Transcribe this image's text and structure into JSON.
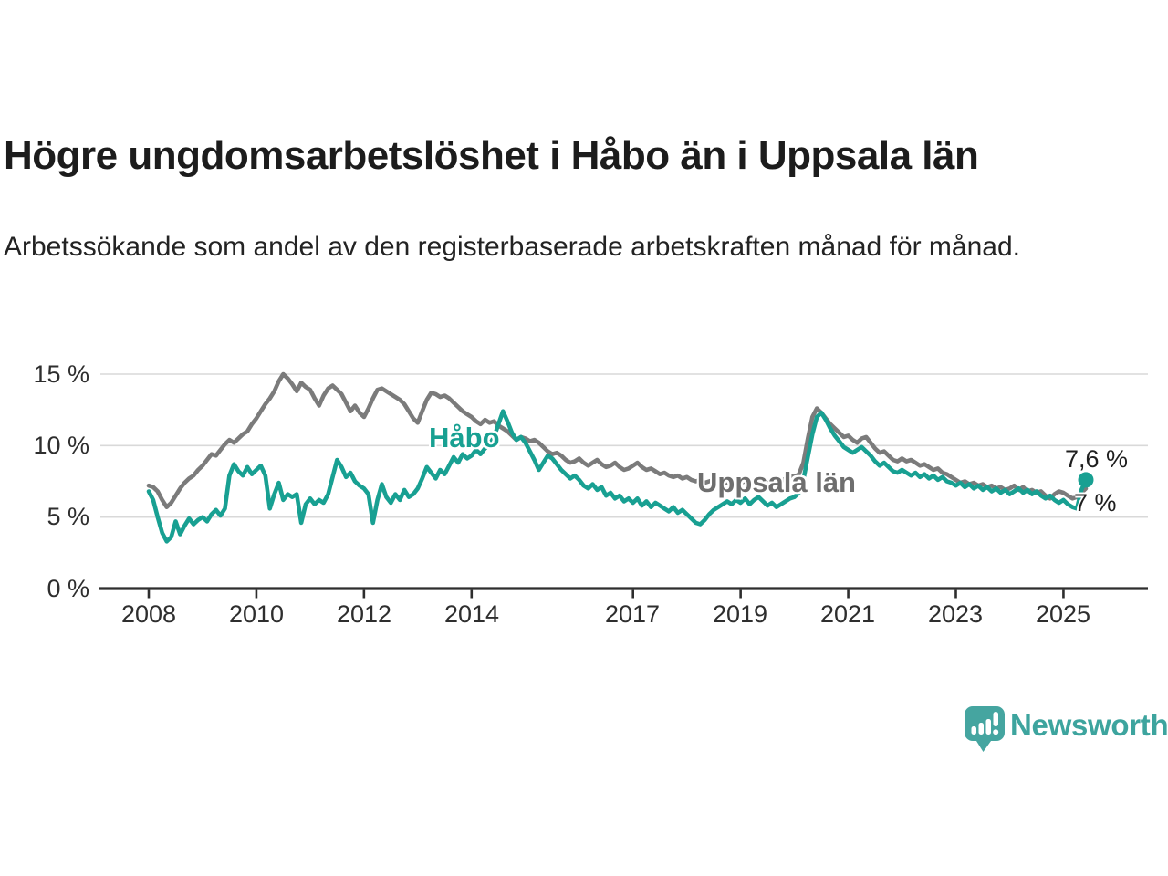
{
  "header": {
    "title": "Högre ungdomsarbetslöshet i Håbo än i Uppsala län",
    "subtitle": "Arbetssökande som andel av den registerbaserade arbetskraften månad för månad."
  },
  "colors": {
    "habo_teal": "#18a092",
    "uppsala_gray": "#7b7b7b",
    "uppsala_label_gray": "#6e6e6e",
    "grid": "#d9d9d9",
    "axis": "#2e2e2e",
    "text": "#1c1c1c",
    "logo_teal": "#45a5a0"
  },
  "chart_data": {
    "type": "line",
    "title": "Högre ungdomsarbetslöshet i Håbo än i Uppsala län",
    "xlabel": "",
    "ylabel": "",
    "unit": "%",
    "ylim": [
      0,
      15
    ],
    "grid": "horizontal",
    "legend_position": "inline-labels",
    "start_month": "2008-01",
    "end_month": "2025-06",
    "points_per_year": 12,
    "y_ticks": [
      {
        "value": 15,
        "label": "15 %"
      },
      {
        "value": 10,
        "label": "10 %"
      },
      {
        "value": 5,
        "label": "5 %"
      },
      {
        "value": 0,
        "label": "0 %"
      }
    ],
    "x_ticks": [
      {
        "year": 2008,
        "label": "2008"
      },
      {
        "year": 2010,
        "label": "2010"
      },
      {
        "year": 2012,
        "label": "2012"
      },
      {
        "year": 2014,
        "label": "2014"
      },
      {
        "year": 2017,
        "label": "2017"
      },
      {
        "year": 2019,
        "label": "2019"
      },
      {
        "year": 2021,
        "label": "2021"
      },
      {
        "year": 2023,
        "label": "2023"
      },
      {
        "year": 2025,
        "label": "2025"
      }
    ],
    "series": [
      {
        "name": "Uppsala län",
        "color": "#7b7b7b",
        "end_label": "7 %",
        "end_marker": false,
        "values": [
          7.2,
          7.1,
          6.8,
          6.2,
          5.7,
          6.0,
          6.5,
          7.0,
          7.4,
          7.7,
          7.9,
          8.3,
          8.6,
          9.0,
          9.4,
          9.3,
          9.7,
          10.1,
          10.4,
          10.2,
          10.5,
          10.8,
          11.0,
          11.5,
          11.9,
          12.4,
          12.9,
          13.3,
          13.8,
          14.5,
          15.0,
          14.7,
          14.3,
          13.8,
          14.4,
          14.1,
          13.9,
          13.3,
          12.8,
          13.5,
          14.0,
          14.2,
          13.9,
          13.6,
          13.0,
          12.4,
          12.8,
          12.3,
          12.0,
          12.6,
          13.3,
          13.9,
          14.0,
          13.8,
          13.6,
          13.4,
          13.2,
          12.9,
          12.4,
          11.9,
          11.6,
          12.4,
          13.2,
          13.7,
          13.6,
          13.4,
          13.5,
          13.3,
          13.0,
          12.7,
          12.4,
          12.2,
          12.0,
          11.7,
          11.5,
          11.8,
          11.6,
          11.7,
          11.4,
          11.2,
          11.0,
          10.7,
          10.4,
          10.6,
          10.5,
          10.3,
          10.4,
          10.2,
          9.9,
          9.6,
          9.4,
          9.5,
          9.3,
          9.0,
          8.8,
          8.9,
          9.1,
          8.8,
          8.6,
          8.8,
          9.0,
          8.7,
          8.5,
          8.6,
          8.8,
          8.5,
          8.3,
          8.4,
          8.6,
          8.8,
          8.5,
          8.3,
          8.4,
          8.2,
          8.0,
          8.1,
          7.9,
          7.8,
          7.9,
          7.7,
          7.8,
          7.6,
          7.5,
          7.6,
          7.4,
          7.5,
          7.6,
          7.4,
          7.3,
          7.4,
          7.5,
          7.4,
          7.4,
          7.5,
          7.3,
          7.4,
          7.2,
          7.3,
          7.4,
          7.2,
          7.3,
          7.5,
          7.7,
          7.9,
          7.8,
          8.0,
          8.8,
          10.5,
          12.0,
          12.6,
          12.3,
          11.9,
          11.5,
          11.2,
          10.9,
          10.6,
          10.7,
          10.4,
          10.2,
          10.5,
          10.6,
          10.2,
          9.8,
          9.5,
          9.6,
          9.3,
          9.0,
          8.9,
          9.1,
          8.9,
          9.0,
          8.8,
          8.6,
          8.7,
          8.5,
          8.3,
          8.4,
          8.1,
          8.0,
          7.8,
          7.6,
          7.4,
          7.5,
          7.3,
          7.4,
          7.2,
          7.3,
          7.1,
          7.2,
          7.0,
          7.1,
          6.9,
          7.0,
          7.2,
          6.9,
          7.1,
          6.8,
          6.9,
          6.7,
          6.8,
          6.5,
          6.3,
          6.6,
          6.8,
          6.7,
          6.5,
          6.3,
          6.4,
          6.7,
          7.0
        ]
      },
      {
        "name": "Håbo",
        "color": "#18a092",
        "end_label": "7,6 %",
        "end_marker": true,
        "values": [
          6.8,
          6.2,
          5.0,
          3.9,
          3.3,
          3.6,
          4.7,
          3.8,
          4.4,
          4.9,
          4.5,
          4.8,
          5.0,
          4.7,
          5.2,
          5.5,
          5.1,
          5.6,
          7.9,
          8.7,
          8.2,
          7.9,
          8.5,
          8.0,
          8.3,
          8.6,
          7.9,
          5.6,
          6.6,
          7.4,
          6.2,
          6.6,
          6.4,
          6.6,
          4.6,
          5.9,
          6.3,
          5.9,
          6.2,
          6.0,
          6.6,
          7.8,
          9.0,
          8.5,
          7.8,
          8.1,
          7.5,
          7.2,
          7.0,
          6.6,
          4.6,
          6.2,
          7.3,
          6.4,
          6.0,
          6.6,
          6.2,
          6.9,
          6.4,
          6.6,
          7.0,
          7.7,
          8.5,
          8.1,
          7.7,
          8.3,
          8.0,
          8.6,
          9.2,
          8.8,
          9.4,
          9.1,
          9.3,
          9.7,
          9.4,
          9.8,
          10.1,
          10.6,
          11.5,
          12.4,
          11.7,
          10.9,
          10.4,
          10.6,
          10.2,
          9.6,
          9.0,
          8.3,
          8.8,
          9.3,
          9.1,
          8.7,
          8.3,
          8.0,
          7.7,
          7.9,
          7.6,
          7.2,
          7.0,
          7.3,
          6.9,
          7.1,
          6.5,
          6.7,
          6.3,
          6.5,
          6.1,
          6.3,
          6.0,
          6.3,
          5.8,
          6.1,
          5.7,
          6.0,
          5.8,
          5.6,
          5.4,
          5.7,
          5.3,
          5.5,
          5.2,
          4.9,
          4.6,
          4.5,
          4.8,
          5.2,
          5.5,
          5.7,
          5.9,
          6.1,
          5.9,
          6.2,
          6.0,
          6.3,
          5.9,
          6.2,
          6.4,
          6.1,
          5.8,
          6.0,
          5.7,
          5.9,
          6.1,
          6.3,
          6.4,
          6.7,
          7.6,
          9.2,
          10.8,
          12.0,
          12.3,
          11.8,
          11.2,
          10.7,
          10.3,
          9.9,
          9.7,
          9.5,
          9.7,
          9.9,
          9.6,
          9.3,
          8.9,
          8.6,
          8.8,
          8.5,
          8.2,
          8.1,
          8.3,
          8.1,
          7.9,
          8.1,
          7.8,
          8.0,
          7.7,
          7.9,
          7.6,
          7.8,
          7.5,
          7.4,
          7.2,
          7.4,
          7.1,
          7.3,
          7.0,
          7.2,
          6.9,
          7.1,
          6.8,
          7.0,
          6.7,
          6.9,
          6.6,
          6.8,
          7.0,
          6.7,
          6.9,
          6.6,
          6.8,
          6.5,
          6.3,
          6.5,
          6.2,
          6.0,
          6.2,
          5.9,
          5.7,
          5.6,
          6.9,
          7.6
        ]
      }
    ],
    "inline_labels": {
      "habo": "Håbo",
      "uppsala": "Uppsala län"
    },
    "end_value_labels": {
      "habo": "7,6 %",
      "uppsala": "7 %"
    }
  },
  "footer": {
    "brand": "Newsworthy"
  }
}
